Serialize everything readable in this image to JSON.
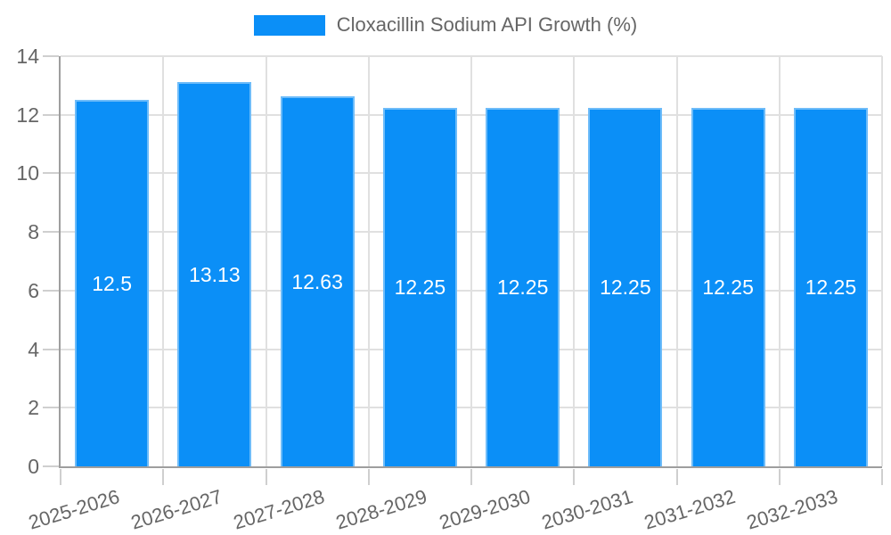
{
  "chart_data": {
    "type": "bar",
    "title": "",
    "legend_label": "Cloxacillin Sodium API Growth (%)",
    "legend_position": "top",
    "categories": [
      "2025-2026",
      "2026-2027",
      "2027-2028",
      "2028-2029",
      "2029-2030",
      "2030-2031",
      "2031-2032",
      "2032-2033"
    ],
    "values": [
      12.5,
      13.13,
      12.63,
      12.25,
      12.25,
      12.25,
      12.25,
      12.25
    ],
    "value_labels": [
      "12.5",
      "13.13",
      "12.63",
      "12.25",
      "12.25",
      "12.25",
      "12.25",
      "12.25"
    ],
    "xlabel": "",
    "ylabel": "",
    "ylim": [
      0,
      14
    ],
    "yticks": [
      0,
      2,
      4,
      6,
      8,
      10,
      12,
      14
    ],
    "grid": true,
    "x_label_rotation_deg": -17,
    "colors": {
      "bar": "#0b8ff7",
      "bar_edge": "#6ebcf9",
      "value_label": "#ffffff",
      "axis_line": "#9e9e9e",
      "grid_line": "#e0e0e0",
      "tick_mark": "#cfcfcf",
      "tick_text": "#666666",
      "legend_text": "#666666",
      "background": "#ffffff"
    }
  }
}
